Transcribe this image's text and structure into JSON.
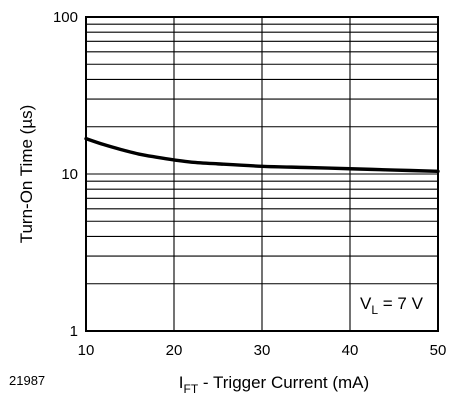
{
  "figure_number": "21987",
  "chart_data": {
    "type": "line",
    "title": "",
    "xlabel": {
      "main": "I",
      "sub": "FT",
      "rest": " - Trigger Current (mA)"
    },
    "ylabel": "Turn-On Time (µs)",
    "x_scale": "linear",
    "y_scale": "log",
    "xlim": [
      10,
      50
    ],
    "ylim": [
      1,
      100
    ],
    "x_ticks": [
      10,
      20,
      30,
      40,
      50
    ],
    "y_ticks": [
      1,
      10,
      100
    ],
    "x_tick_labels": [
      "10",
      "20",
      "30",
      "40",
      "50"
    ],
    "y_tick_labels": [
      "1",
      "10",
      "100"
    ],
    "grid": true,
    "annotation": {
      "main": "V",
      "sub": "L",
      "rest": " = 7 V"
    },
    "series": [
      {
        "x": [
          10,
          12,
          14,
          16,
          18,
          20,
          22,
          25,
          30,
          35,
          40,
          45,
          50
        ],
        "y": [
          16.8,
          15.4,
          14.3,
          13.4,
          12.8,
          12.3,
          11.9,
          11.6,
          11.2,
          11.0,
          10.8,
          10.6,
          10.4
        ]
      }
    ]
  }
}
